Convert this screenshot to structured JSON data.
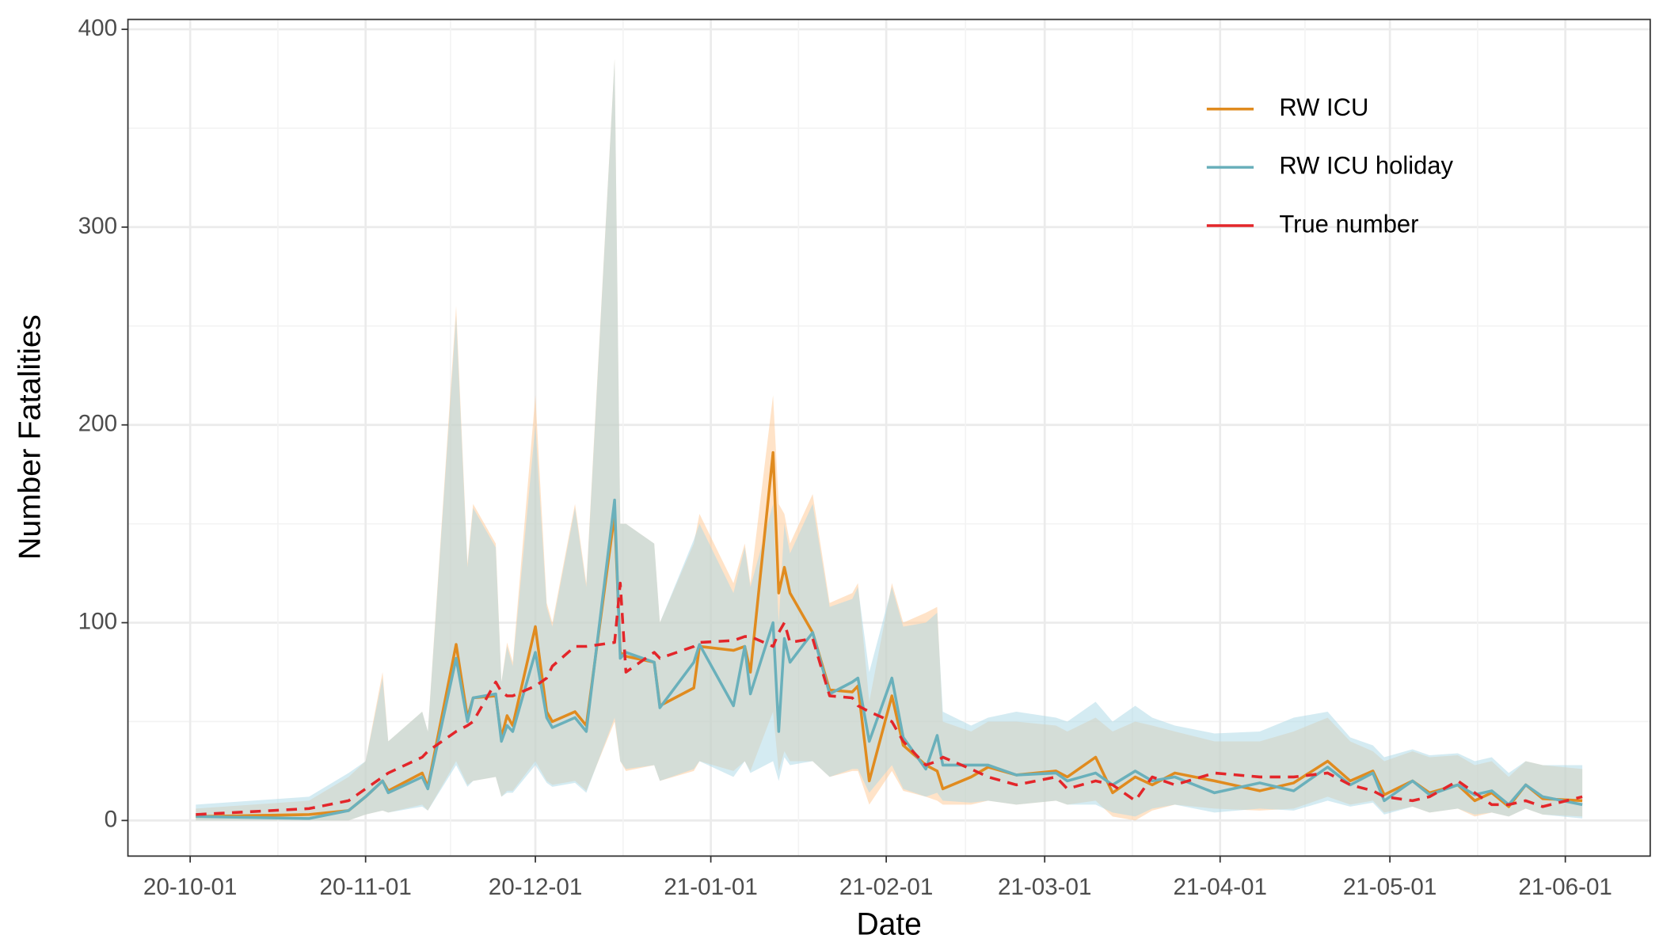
{
  "chart_data": {
    "type": "line",
    "xlabel": "Date",
    "ylabel": "Number Fatalities",
    "x": [
      "20-10-02",
      "20-10-22",
      "20-10-29",
      "20-11-01",
      "20-11-04",
      "20-11-05",
      "20-11-11",
      "20-11-12",
      "20-11-17",
      "20-11-19",
      "20-11-20",
      "20-11-24",
      "20-11-25",
      "20-11-26",
      "20-11-27",
      "20-12-01",
      "20-12-03",
      "20-12-04",
      "20-12-08",
      "20-12-10",
      "20-12-15",
      "20-12-16",
      "20-12-17",
      "20-12-22",
      "20-12-23",
      "20-12-29",
      "20-12-30",
      "21-01-05",
      "21-01-07",
      "21-01-08",
      "21-01-12",
      "21-01-13",
      "21-01-14",
      "21-01-15",
      "21-01-19",
      "21-01-22",
      "21-01-26",
      "21-01-27",
      "21-01-29",
      "21-02-02",
      "21-02-04",
      "21-02-08",
      "21-02-10",
      "21-02-11",
      "21-02-16",
      "21-02-19",
      "21-02-24",
      "21-03-03",
      "21-03-05",
      "21-03-10",
      "21-03-13",
      "21-03-17",
      "21-03-20",
      "21-03-24",
      "21-03-31",
      "21-04-08",
      "21-04-14",
      "21-04-20",
      "21-04-24",
      "21-04-28",
      "21-04-30",
      "21-05-05",
      "21-05-08",
      "21-05-13",
      "21-05-16",
      "21-05-19",
      "21-05-22",
      "21-05-25",
      "21-05-28",
      "21-06-04"
    ],
    "series": [
      {
        "name": "RW ICU",
        "color": "#e08b1f",
        "band_color": "#ffc892",
        "dashed": false,
        "values": [
          2,
          3,
          5,
          12,
          20,
          15,
          24,
          17,
          89,
          52,
          62,
          63,
          42,
          53,
          48,
          98,
          55,
          50,
          55,
          48,
          155,
          85,
          83,
          80,
          58,
          67,
          88,
          86,
          88,
          75,
          186,
          115,
          128,
          115,
          95,
          66,
          65,
          68,
          20,
          63,
          38,
          28,
          25,
          16,
          22,
          27,
          23,
          25,
          22,
          32,
          14,
          22,
          18,
          24,
          20,
          15,
          19,
          30,
          20,
          25,
          13,
          20,
          14,
          18,
          10,
          14,
          7,
          18,
          11,
          10
        ],
        "lower": [
          0,
          0,
          0,
          3,
          5,
          4,
          8,
          5,
          30,
          18,
          20,
          22,
          12,
          15,
          15,
          30,
          20,
          18,
          20,
          15,
          50,
          30,
          25,
          28,
          20,
          25,
          30,
          25,
          30,
          25,
          55,
          25,
          35,
          30,
          30,
          22,
          25,
          25,
          8,
          25,
          15,
          12,
          10,
          8,
          8,
          10,
          8,
          10,
          8,
          10,
          2,
          0,
          5,
          8,
          6,
          5,
          6,
          12,
          8,
          10,
          4,
          7,
          4,
          6,
          2,
          4,
          2,
          6,
          3,
          2
        ],
        "upper": [
          6,
          10,
          22,
          30,
          75,
          40,
          55,
          45,
          260,
          130,
          160,
          140,
          70,
          90,
          80,
          215,
          110,
          100,
          160,
          120,
          385,
          150,
          150,
          140,
          100,
          140,
          155,
          120,
          140,
          120,
          215,
          160,
          155,
          140,
          165,
          110,
          115,
          120,
          60,
          120,
          100,
          105,
          108,
          50,
          45,
          50,
          50,
          48,
          45,
          52,
          45,
          50,
          48,
          45,
          40,
          40,
          45,
          52,
          40,
          35,
          30,
          35,
          32,
          33,
          28,
          30,
          22,
          30,
          28,
          26
        ]
      },
      {
        "name": "RW ICU holiday",
        "color": "#6ab0bb",
        "band_color": "#a9d8e6",
        "dashed": false,
        "values": [
          2,
          1,
          5,
          12,
          20,
          14,
          22,
          16,
          82,
          50,
          62,
          64,
          40,
          48,
          45,
          85,
          52,
          47,
          52,
          45,
          162,
          82,
          85,
          80,
          57,
          80,
          89,
          58,
          88,
          64,
          100,
          45,
          92,
          80,
          95,
          64,
          70,
          72,
          40,
          72,
          42,
          26,
          43,
          28,
          28,
          28,
          23,
          24,
          20,
          24,
          18,
          25,
          20,
          22,
          14,
          19,
          15,
          27,
          18,
          24,
          10,
          20,
          13,
          18,
          13,
          15,
          8,
          18,
          12,
          8
        ],
        "lower": [
          0,
          0,
          0,
          3,
          5,
          4,
          7,
          5,
          28,
          17,
          20,
          22,
          12,
          14,
          14,
          28,
          19,
          17,
          19,
          14,
          52,
          30,
          26,
          28,
          20,
          26,
          30,
          22,
          30,
          24,
          30,
          20,
          32,
          28,
          30,
          22,
          26,
          26,
          14,
          28,
          16,
          12,
          14,
          10,
          9,
          10,
          8,
          10,
          8,
          8,
          4,
          2,
          6,
          8,
          4,
          6,
          5,
          10,
          7,
          9,
          3,
          7,
          4,
          6,
          3,
          4,
          2,
          6,
          3,
          1
        ],
        "upper": [
          8,
          12,
          24,
          30,
          72,
          40,
          55,
          45,
          255,
          128,
          158,
          138,
          70,
          88,
          78,
          200,
          108,
          98,
          158,
          118,
          385,
          150,
          150,
          140,
          100,
          142,
          150,
          115,
          138,
          118,
          160,
          100,
          150,
          135,
          160,
          108,
          112,
          118,
          75,
          118,
          98,
          100,
          105,
          55,
          48,
          52,
          55,
          52,
          50,
          60,
          50,
          58,
          52,
          48,
          44,
          45,
          52,
          55,
          42,
          38,
          32,
          36,
          33,
          34,
          30,
          32,
          24,
          30,
          28,
          28
        ]
      },
      {
        "name": "True number",
        "color": "#e3262a",
        "dashed": true,
        "values": [
          3,
          6,
          10,
          16,
          22,
          24,
          32,
          35,
          45,
          48,
          50,
          70,
          65,
          63,
          63,
          68,
          72,
          78,
          88,
          88,
          90,
          120,
          75,
          85,
          82,
          88,
          90,
          91,
          93,
          93,
          88,
          95,
          100,
          90,
          92,
          63,
          62,
          58,
          55,
          50,
          40,
          28,
          30,
          32,
          26,
          22,
          18,
          22,
          16,
          20,
          18,
          10,
          22,
          18,
          24,
          22,
          22,
          24,
          18,
          15,
          12,
          10,
          12,
          20,
          14,
          8,
          8,
          10,
          7,
          12
        ]
      }
    ],
    "xlim": [
      "20-09-20",
      "21-06-16"
    ],
    "xticks": [
      "20-10-01",
      "20-11-01",
      "20-12-01",
      "21-01-01",
      "21-02-01",
      "21-03-01",
      "21-04-01",
      "21-05-01",
      "21-06-01"
    ],
    "ylim": [
      -18,
      405
    ],
    "yticks": [
      0,
      100,
      200,
      300,
      400
    ],
    "grid": true,
    "minor_grid": true,
    "legend": "top-right"
  }
}
